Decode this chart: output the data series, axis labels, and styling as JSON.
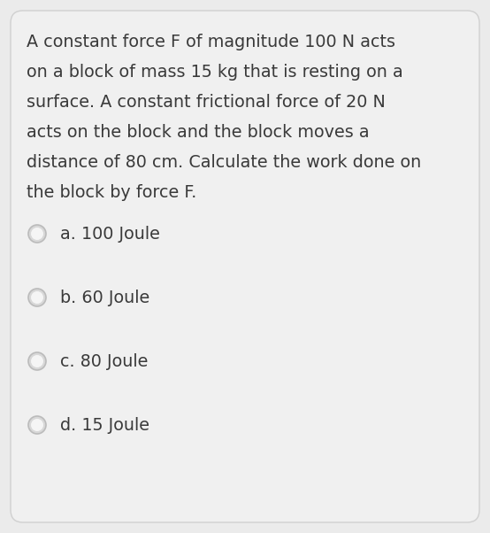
{
  "background_color": "#ebebeb",
  "card_color": "#f0f0f0",
  "question_lines": [
    "A constant force F of magnitude 100 N acts",
    "on a block of mass 15 kg that is resting on a",
    "surface. A constant frictional force of 20 N",
    "acts on the block and the block moves a",
    "distance of 80 cm. Calculate the work done on",
    "the block by force F."
  ],
  "options": [
    "a. 100 Joule",
    "b. 60 Joule",
    "c. 80 Joule",
    "d. 15 Joule"
  ],
  "text_color": "#3a3a3a",
  "circle_face_color": "#d8d8d8",
  "circle_edge_color": "#bbbbbb",
  "circle_inner_color": "#f5f5f5",
  "question_fontsize": 13.8,
  "option_fontsize": 13.8,
  "fig_width": 5.54,
  "fig_height": 6.02,
  "dpi": 100
}
